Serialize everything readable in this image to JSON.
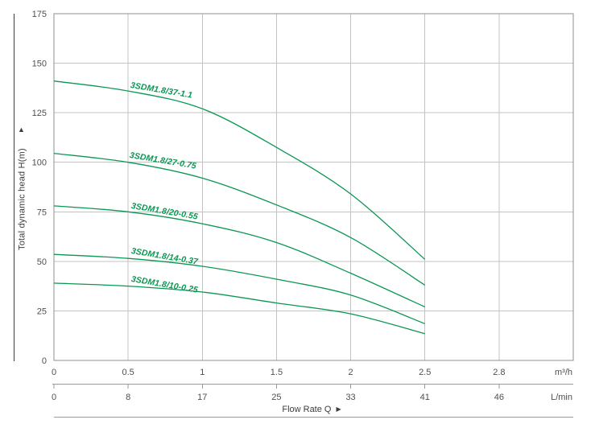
{
  "chart_data": {
    "type": "line",
    "title": "",
    "xlabel": "Flow Rate Q",
    "xlabel_arrow": "▶",
    "ylabel": "Total dynamic head H(m)",
    "ylabel_arrow": "▲",
    "x_unit_primary": "m³/h",
    "x_unit_secondary": "L/min",
    "x_ticks_m3h": [
      "0",
      "0.5",
      "1",
      "1.5",
      "2",
      "2.5",
      "2.8"
    ],
    "x_ticks_lmin": [
      "0",
      "8",
      "17",
      "25",
      "33",
      "41",
      "46"
    ],
    "y_ticks": [
      "175",
      "150",
      "125",
      "100",
      "75",
      "50",
      "25",
      "0"
    ],
    "ylim": [
      0,
      175
    ],
    "xlim_m3h": [
      0,
      2.8
    ],
    "grid": true,
    "legend_position": "inline-curve-labels",
    "series": [
      {
        "name": "3SDM1.8/37-1.1",
        "x": [
          0,
          0.5,
          1,
          1.5,
          2,
          2.5
        ],
        "y": [
          141,
          136,
          127,
          107.5,
          84,
          51
        ]
      },
      {
        "name": "3SDM1.8/27-0.75",
        "x": [
          0,
          0.5,
          1,
          1.5,
          2,
          2.5
        ],
        "y": [
          104.5,
          100,
          92,
          78.5,
          62,
          38
        ]
      },
      {
        "name": "3SDM1.8/20-0.55",
        "x": [
          0,
          0.5,
          1,
          1.5,
          2,
          2.5
        ],
        "y": [
          78,
          75,
          69,
          59.5,
          44,
          27
        ]
      },
      {
        "name": "3SDM1.8/14-0.37",
        "x": [
          0,
          0.5,
          1,
          1.5,
          2,
          2.5
        ],
        "y": [
          53.5,
          51.5,
          47.5,
          41,
          33,
          18.5
        ]
      },
      {
        "name": "3SDM1.8/10-0.25",
        "x": [
          0,
          0.5,
          1,
          1.5,
          2,
          2.5
        ],
        "y": [
          39,
          37.5,
          34.5,
          29,
          23.5,
          13.5
        ]
      }
    ],
    "colors": {
      "curve": "#0b9752",
      "curve_label": "#0b9752",
      "grid": "#c3c3c3",
      "plot_border": "#8f8f8f",
      "secondary_axis": "#9a9a9a",
      "tick_text": "#4f4f4f",
      "axis_title_text": "#3d3d3d",
      "background": "#ffffff"
    }
  }
}
